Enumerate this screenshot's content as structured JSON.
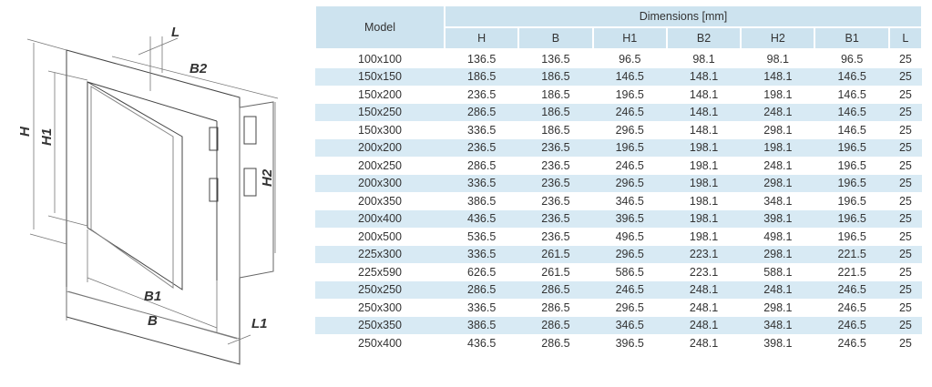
{
  "drawing": {
    "labels": {
      "H": "H",
      "H1": "H1",
      "H2": "H2",
      "B": "B",
      "B1": "B1",
      "B2": "B2",
      "L": "L",
      "L1": "L1"
    }
  },
  "table": {
    "model_header": "Model",
    "group_header": "Dimensions [mm]",
    "columns": [
      "H",
      "B",
      "H1",
      "B2",
      "H2",
      "B1",
      "L"
    ],
    "rows": [
      [
        "100x100",
        "136.5",
        "136.5",
        "96.5",
        "98.1",
        "98.1",
        "96.5",
        "25"
      ],
      [
        "150x150",
        "186.5",
        "186.5",
        "146.5",
        "148.1",
        "148.1",
        "146.5",
        "25"
      ],
      [
        "150x200",
        "236.5",
        "186.5",
        "196.5",
        "148.1",
        "198.1",
        "146.5",
        "25"
      ],
      [
        "150x250",
        "286.5",
        "186.5",
        "246.5",
        "148.1",
        "248.1",
        "146.5",
        "25"
      ],
      [
        "150x300",
        "336.5",
        "186.5",
        "296.5",
        "148.1",
        "298.1",
        "146.5",
        "25"
      ],
      [
        "200x200",
        "236.5",
        "236.5",
        "196.5",
        "198.1",
        "198.1",
        "196.5",
        "25"
      ],
      [
        "200x250",
        "286.5",
        "236.5",
        "246.5",
        "198.1",
        "248.1",
        "196.5",
        "25"
      ],
      [
        "200x300",
        "336.5",
        "236.5",
        "296.5",
        "198.1",
        "298.1",
        "196.5",
        "25"
      ],
      [
        "200x350",
        "386.5",
        "236.5",
        "346.5",
        "198.1",
        "348.1",
        "196.5",
        "25"
      ],
      [
        "200x400",
        "436.5",
        "236.5",
        "396.5",
        "198.1",
        "398.1",
        "196.5",
        "25"
      ],
      [
        "200x500",
        "536.5",
        "236.5",
        "496.5",
        "198.1",
        "498.1",
        "196.5",
        "25"
      ],
      [
        "225x300",
        "336.5",
        "261.5",
        "296.5",
        "223.1",
        "298.1",
        "221.5",
        "25"
      ],
      [
        "225x590",
        "626.5",
        "261.5",
        "586.5",
        "223.1",
        "588.1",
        "221.5",
        "25"
      ],
      [
        "250x250",
        "286.5",
        "286.5",
        "246.5",
        "248.1",
        "248.1",
        "246.5",
        "25"
      ],
      [
        "250x300",
        "336.5",
        "286.5",
        "296.5",
        "248.1",
        "298.1",
        "246.5",
        "25"
      ],
      [
        "250x350",
        "386.5",
        "286.5",
        "346.5",
        "248.1",
        "348.1",
        "246.5",
        "25"
      ],
      [
        "250x400",
        "436.5",
        "286.5",
        "396.5",
        "248.1",
        "398.1",
        "246.5",
        "25"
      ]
    ]
  }
}
